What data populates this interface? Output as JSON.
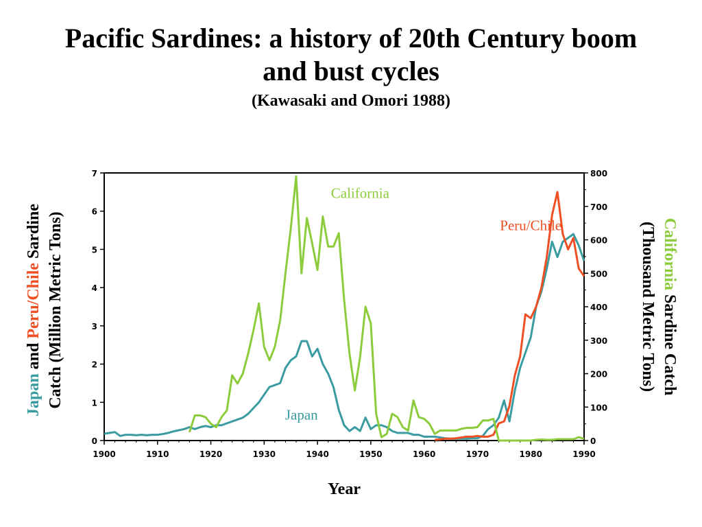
{
  "slide": {
    "title": "Pacific Sardines: a history of 20th Century boom and bust cycles",
    "subtitle": "(Kawasaki and Omori 1988)"
  },
  "colors": {
    "japan": "#3a9ba0",
    "peru_chile": "#f04e23",
    "california": "#8ccc3c",
    "axis": "#000000"
  },
  "chart_data": {
    "type": "line",
    "title": "Pacific Sardines: a history of 20th Century boom and bust cycles",
    "subtitle": "(Kawasaki and Omori 1988)",
    "xlabel": "Year",
    "xlim": [
      1900,
      1990
    ],
    "x_ticks": [
      1900,
      1910,
      1920,
      1930,
      1940,
      1950,
      1960,
      1970,
      1980,
      1990
    ],
    "ylabel_left_parts": [
      {
        "text": "Japan",
        "color": "#3a9ba0"
      },
      {
        "text": " and ",
        "color": "#000000"
      },
      {
        "text": "Peru/Chile",
        "color": "#f04e23"
      },
      {
        "text": " Sardine",
        "color": "#000000"
      }
    ],
    "ylabel_left_line2": "Catch (Million Metric Tons)",
    "ylim_left": [
      0,
      7
    ],
    "y_ticks_left": [
      0,
      1,
      2,
      3,
      4,
      5,
      6,
      7
    ],
    "ylabel_right_parts": [
      {
        "text": "California",
        "color": "#8ccc3c"
      },
      {
        "text": " Sardine Catch",
        "color": "#000000"
      }
    ],
    "ylabel_right_line2": "(Thousand Metric Tons)",
    "ylim_right": [
      0,
      800
    ],
    "y_ticks_right": [
      0,
      100,
      200,
      300,
      400,
      500,
      600,
      700,
      800
    ],
    "grid": false,
    "series": [
      {
        "name": "Japan",
        "axis": "left",
        "color": "#3a9ba0",
        "label_x": 1898,
        "x": [
          1900,
          1901,
          1902,
          1903,
          1904,
          1905,
          1906,
          1907,
          1908,
          1909,
          1910,
          1911,
          1912,
          1913,
          1914,
          1915,
          1916,
          1917,
          1918,
          1919,
          1920,
          1921,
          1922,
          1923,
          1924,
          1925,
          1926,
          1927,
          1928,
          1929,
          1930,
          1931,
          1932,
          1933,
          1934,
          1935,
          1936,
          1937,
          1938,
          1939,
          1940,
          1941,
          1942,
          1943,
          1944,
          1945,
          1946,
          1947,
          1948,
          1949,
          1950,
          1951,
          1952,
          1953,
          1954,
          1955,
          1956,
          1957,
          1958,
          1959,
          1960,
          1961,
          1962,
          1963,
          1964,
          1965,
          1966,
          1967,
          1968,
          1969,
          1970,
          1971,
          1972,
          1973,
          1974,
          1975,
          1976,
          1977,
          1978,
          1979,
          1980,
          1981,
          1982,
          1983,
          1984,
          1985,
          1986,
          1987,
          1988,
          1989,
          1990
        ],
        "values": [
          0.18,
          0.2,
          0.22,
          0.12,
          0.15,
          0.15,
          0.14,
          0.15,
          0.14,
          0.15,
          0.15,
          0.17,
          0.2,
          0.24,
          0.27,
          0.3,
          0.35,
          0.3,
          0.35,
          0.38,
          0.35,
          0.4,
          0.4,
          0.45,
          0.5,
          0.55,
          0.6,
          0.7,
          0.85,
          1.0,
          1.2,
          1.4,
          1.45,
          1.5,
          1.9,
          2.1,
          2.2,
          2.6,
          2.6,
          2.2,
          2.4,
          2.0,
          1.75,
          1.4,
          0.8,
          0.4,
          0.25,
          0.35,
          0.25,
          0.6,
          0.3,
          0.4,
          0.4,
          0.35,
          0.25,
          0.2,
          0.2,
          0.2,
          0.15,
          0.15,
          0.1,
          0.1,
          0.1,
          0.08,
          0.06,
          0.05,
          0.05,
          0.05,
          0.05,
          0.06,
          0.06,
          0.12,
          0.3,
          0.4,
          0.6,
          1.05,
          0.5,
          1.3,
          1.9,
          2.3,
          2.7,
          3.5,
          3.9,
          4.5,
          5.2,
          4.8,
          5.2,
          5.3,
          5.4,
          5.1,
          4.7
        ]
      },
      {
        "name": "Peru/Chile",
        "axis": "left",
        "color": "#f04e23",
        "label_x": 1966,
        "x": [
          1962,
          1963,
          1964,
          1965,
          1966,
          1967,
          1968,
          1969,
          1970,
          1971,
          1972,
          1973,
          1974,
          1975,
          1976,
          1977,
          1978,
          1979,
          1980,
          1981,
          1982,
          1983,
          1984,
          1985,
          1986,
          1987,
          1988,
          1989,
          1990
        ],
        "values": [
          0.02,
          0.03,
          0.05,
          0.05,
          0.06,
          0.08,
          0.1,
          0.1,
          0.12,
          0.1,
          0.1,
          0.15,
          0.45,
          0.5,
          0.9,
          1.7,
          2.2,
          3.3,
          3.2,
          3.5,
          4.0,
          4.8,
          5.9,
          6.5,
          5.4,
          5.0,
          5.3,
          4.5,
          4.3
        ]
      },
      {
        "name": "California",
        "axis": "right",
        "color": "#8ccc3c",
        "label_x": 1938,
        "x": [
          1916,
          1917,
          1918,
          1919,
          1920,
          1921,
          1922,
          1923,
          1924,
          1925,
          1926,
          1927,
          1928,
          1929,
          1930,
          1931,
          1932,
          1933,
          1934,
          1935,
          1936,
          1937,
          1938,
          1939,
          1940,
          1941,
          1942,
          1943,
          1944,
          1945,
          1946,
          1947,
          1948,
          1949,
          1950,
          1951,
          1952,
          1953,
          1954,
          1955,
          1956,
          1957,
          1958,
          1959,
          1960,
          1961,
          1962,
          1963,
          1964,
          1965,
          1966,
          1967,
          1968,
          1969,
          1970,
          1971,
          1972,
          1973,
          1974,
          1975,
          1976,
          1977,
          1978,
          1979,
          1980,
          1981,
          1982,
          1983,
          1984,
          1985,
          1986,
          1987,
          1988,
          1989,
          1990
        ],
        "values": [
          25,
          75,
          75,
          70,
          50,
          40,
          70,
          90,
          195,
          170,
          200,
          260,
          330,
          410,
          280,
          240,
          280,
          360,
          500,
          635,
          790,
          500,
          665,
          590,
          510,
          670,
          580,
          580,
          620,
          420,
          260,
          150,
          250,
          400,
          350,
          80,
          10,
          20,
          80,
          70,
          40,
          30,
          120,
          70,
          65,
          50,
          20,
          30,
          30,
          30,
          30,
          35,
          38,
          38,
          40,
          60,
          60,
          65,
          0,
          0,
          0,
          0,
          0,
          0,
          0,
          2,
          3,
          2,
          2,
          4,
          4,
          4,
          4,
          10,
          5
        ]
      }
    ]
  }
}
